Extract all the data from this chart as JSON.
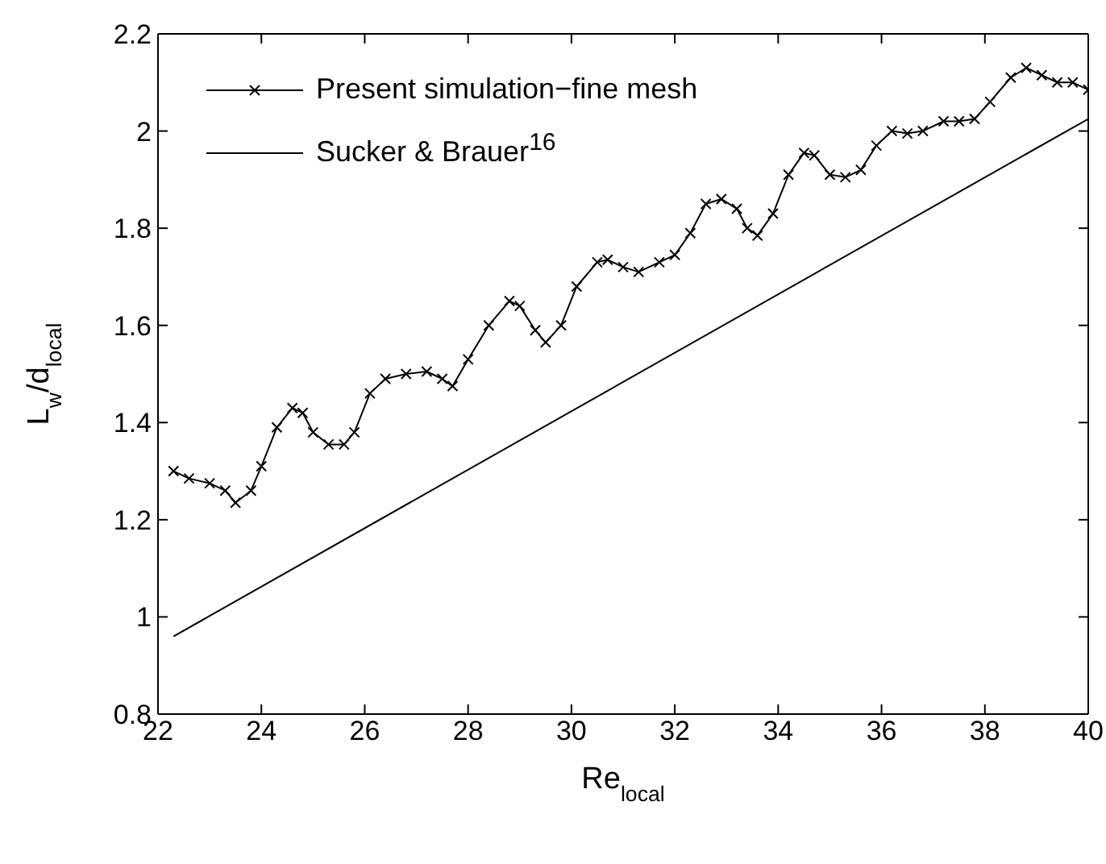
{
  "chart_data": {
    "type": "line",
    "xlabel": "Re$_{local}$",
    "ylabel": "L$_{w}$/d$_{local}$",
    "xlim": [
      22,
      40
    ],
    "ylim": [
      0.8,
      2.2
    ],
    "xticks": [
      22,
      24,
      26,
      28,
      30,
      32,
      34,
      36,
      38,
      40
    ],
    "yticks": [
      0.8,
      1,
      1.2,
      1.4,
      1.6,
      1.8,
      2,
      2.2
    ],
    "legend": "top left",
    "series": [
      {
        "name": "Present simulation−fine mesh",
        "color": "#000000",
        "marker": "cross",
        "x": [
          22.3,
          22.6,
          23.0,
          23.3,
          23.5,
          23.8,
          24.0,
          24.3,
          24.6,
          24.8,
          25.0,
          25.3,
          25.6,
          25.8,
          26.1,
          26.4,
          26.8,
          27.2,
          27.5,
          27.7,
          28.0,
          28.4,
          28.8,
          29.0,
          29.3,
          29.5,
          29.8,
          30.1,
          30.5,
          30.7,
          31.0,
          31.3,
          31.7,
          32.0,
          32.3,
          32.6,
          32.9,
          33.2,
          33.4,
          33.6,
          33.9,
          34.2,
          34.5,
          34.7,
          35.0,
          35.3,
          35.6,
          35.9,
          36.2,
          36.5,
          36.8,
          37.2,
          37.5,
          37.8,
          38.1,
          38.5,
          38.8,
          39.1,
          39.4,
          39.7,
          40.0
        ],
        "values": [
          1.3,
          1.285,
          1.275,
          1.26,
          1.235,
          1.26,
          1.31,
          1.39,
          1.43,
          1.42,
          1.38,
          1.355,
          1.355,
          1.38,
          1.46,
          1.49,
          1.5,
          1.505,
          1.49,
          1.475,
          1.53,
          1.6,
          1.65,
          1.64,
          1.59,
          1.565,
          1.6,
          1.68,
          1.73,
          1.735,
          1.72,
          1.71,
          1.73,
          1.745,
          1.79,
          1.85,
          1.86,
          1.84,
          1.8,
          1.785,
          1.83,
          1.91,
          1.955,
          1.95,
          1.91,
          1.905,
          1.92,
          1.97,
          2.0,
          1.995,
          2.0,
          2.02,
          2.02,
          2.025,
          2.06,
          2.11,
          2.13,
          2.115,
          2.1,
          2.1,
          2.085
        ]
      },
      {
        "name": "Sucker & Brauer$^{16}$",
        "color": "#000000",
        "marker": "none",
        "x": [
          22.3,
          40
        ],
        "values": [
          0.96,
          2.025
        ]
      }
    ]
  }
}
